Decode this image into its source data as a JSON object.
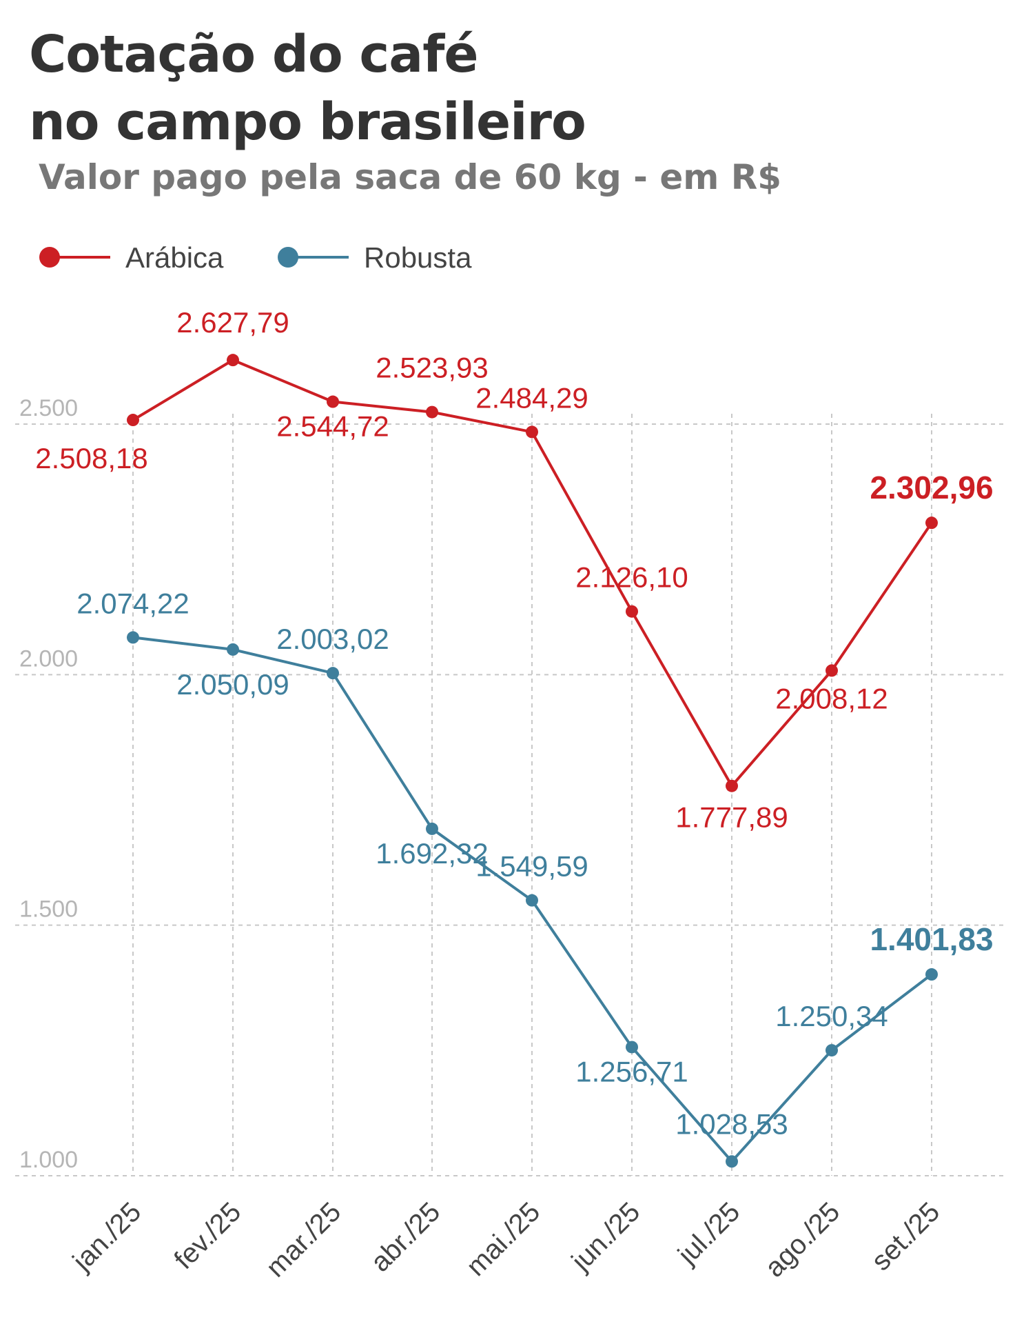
{
  "header": {
    "title_line1": "Cotação do café",
    "title_line2": "no campo brasileiro",
    "subtitle": "Valor pago pela saca de 60 kg - em R$"
  },
  "colors": {
    "arabica": "#cc1f24",
    "robusta": "#3f7f9c",
    "grid": "#c8c8c8",
    "title": "#333333",
    "subtitle": "#777777"
  },
  "chart_data": {
    "type": "line",
    "title": "Cotação do café no campo brasileiro",
    "subtitle": "Valor pago pela saca de 60 kg - em R$",
    "x": [
      "jan./25",
      "fev./25",
      "mar./25",
      "abr./25",
      "mai./25",
      "jun./25",
      "jul./25",
      "ago./25",
      "set./25"
    ],
    "series": [
      {
        "name": "Arábica",
        "color": "#cc1f24",
        "values": [
          2508.18,
          2627.79,
          2544.72,
          2523.93,
          2484.29,
          2126.1,
          1777.89,
          2008.12,
          2302.96
        ],
        "labels": [
          "2.508,18",
          "2.627,79",
          "2.544,72",
          "2.523,93",
          "2.484,29",
          "2.126,10",
          "1.777,89",
          "2.008,12",
          "2.302,96"
        ]
      },
      {
        "name": "Robusta",
        "color": "#3f7f9c",
        "values": [
          2074.22,
          2050.09,
          2003.02,
          1692.32,
          1549.59,
          1256.71,
          1028.53,
          1250.34,
          1401.83
        ],
        "labels": [
          "2.074,22",
          "2.050,09",
          "2.003,02",
          "1.692,32",
          "1.549,59",
          "1.256,71",
          "1.028,53",
          "1.250,34",
          "1.401,83"
        ]
      }
    ],
    "yticks": [
      1000,
      1500,
      2000,
      2500
    ],
    "ytick_labels": [
      "1.000",
      "1.500",
      "2.000",
      "2.500"
    ],
    "ylim": [
      1000,
      2500
    ],
    "grid": true,
    "legend_position": "top-left",
    "highlight_last_value": true
  }
}
